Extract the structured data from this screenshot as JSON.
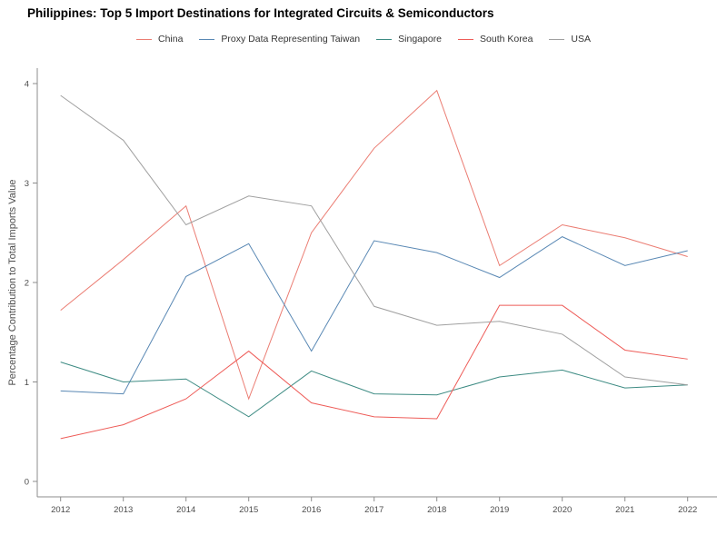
{
  "title": "Philippines: Top 5 Import Destinations for Integrated Circuits & Semiconductors",
  "chart_data": {
    "type": "line",
    "x": [
      2012,
      2013,
      2014,
      2015,
      2016,
      2017,
      2018,
      2019,
      2020,
      2021,
      2022
    ],
    "series": [
      {
        "name": "China",
        "color": "#EB7D73",
        "values": [
          1.72,
          2.23,
          2.77,
          0.83,
          2.5,
          3.35,
          3.93,
          2.17,
          2.58,
          2.45,
          2.26
        ]
      },
      {
        "name": "Proxy Data Representing Taiwan",
        "color": "#5988B4",
        "values": [
          0.91,
          0.88,
          2.06,
          2.39,
          1.31,
          2.42,
          2.3,
          2.05,
          2.46,
          2.17,
          2.32
        ]
      },
      {
        "name": "Singapore",
        "color": "#3D8B83",
        "values": [
          1.2,
          1.0,
          1.03,
          0.65,
          1.11,
          0.88,
          0.87,
          1.05,
          1.12,
          0.94,
          0.97
        ]
      },
      {
        "name": "South Korea",
        "color": "#EE5C58",
        "values": [
          0.43,
          0.57,
          0.83,
          1.31,
          0.79,
          0.65,
          0.63,
          1.77,
          1.77,
          1.32,
          1.23
        ]
      },
      {
        "name": "USA",
        "color": "#A0A0A0",
        "values": [
          3.88,
          3.43,
          2.58,
          2.87,
          2.77,
          1.76,
          1.57,
          1.61,
          1.48,
          1.05,
          0.97
        ]
      }
    ],
    "title": "Philippines: Top 5 Import Destinations for Integrated Circuits & Semiconductors",
    "xlabel": "",
    "ylabel": "Percentage Contribution to Total Imports Value",
    "ylim": [
      0,
      4
    ],
    "yticks": [
      0,
      1,
      2,
      3,
      4
    ],
    "grid": false,
    "legend_position": "top"
  }
}
